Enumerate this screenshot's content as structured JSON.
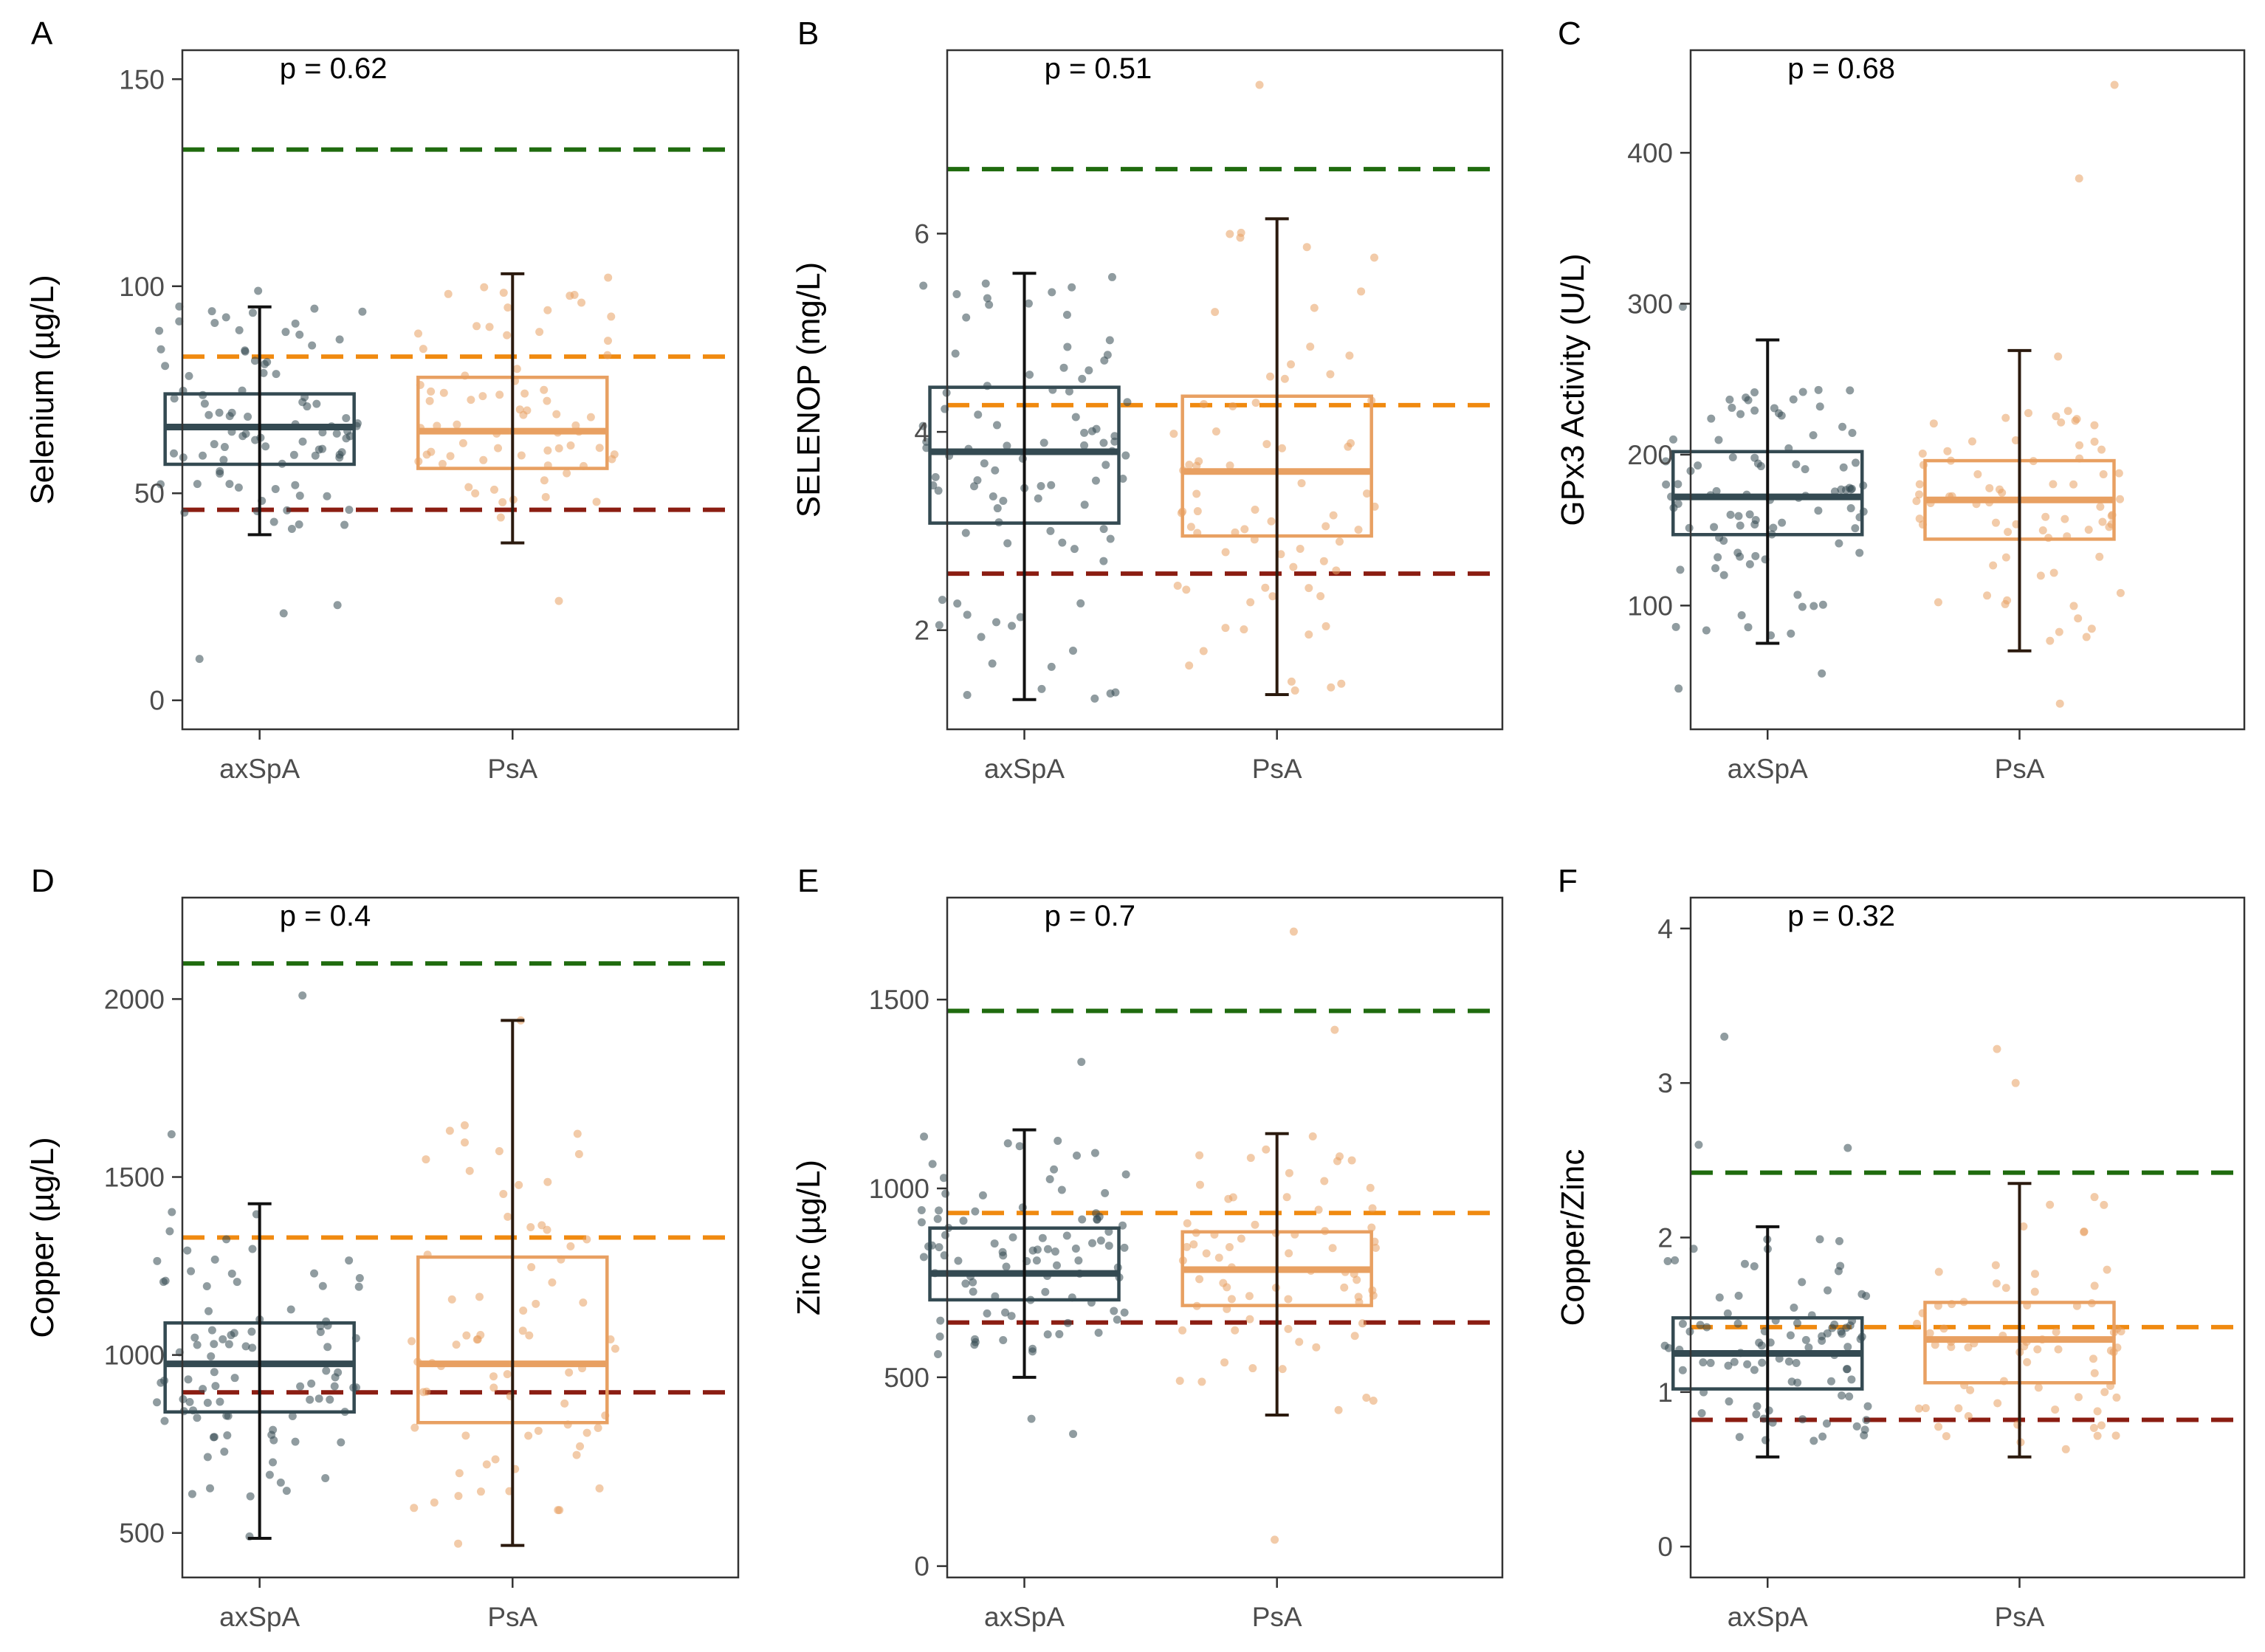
{
  "colors": {
    "axspa": "#344a52",
    "psa": "#e8a062",
    "psa_whisker": "#2b1a0e",
    "ref_high": "#1f6b0e",
    "ref_mid": "#f08a10",
    "ref_low": "#8b1d12",
    "frame": "#333333",
    "tick_text": "#4d4d4d"
  },
  "chart_data": [
    {
      "type": "box",
      "panel": "A",
      "title": "",
      "ylabel": "Selenium (µg/L)",
      "xlabel": "",
      "categories": [
        "axSpA",
        "PsA"
      ],
      "ylim": [
        -7,
        157
      ],
      "yticks": [
        0,
        50,
        100,
        150
      ],
      "pvalue": "p = 0.62",
      "reference_lines": {
        "high": 133,
        "mid": 83,
        "low": 46
      },
      "series": [
        {
          "name": "axSpA",
          "q1": 57,
          "median": 66,
          "q3": 74,
          "whisker_low": 40,
          "whisker_high": 95,
          "points_range": [
            41,
            99
          ],
          "n_points": 90,
          "outliers": [
            21,
            23,
            10
          ]
        },
        {
          "name": "PsA",
          "q1": 56,
          "median": 65,
          "q3": 78,
          "whisker_low": 38,
          "whisker_high": 103,
          "points_range": [
            40,
            103
          ],
          "n_points": 70,
          "outliers": [
            24
          ]
        }
      ]
    },
    {
      "type": "box",
      "panel": "B",
      "title": "",
      "ylabel": "SELENOP (mg/L)",
      "xlabel": "",
      "categories": [
        "axSpA",
        "PsA"
      ],
      "ylim": [
        1.0,
        7.85
      ],
      "yticks": [
        2,
        4,
        6
      ],
      "pvalue": "p = 0.51",
      "reference_lines": {
        "high": 6.65,
        "mid": 4.27,
        "low": 2.57
      },
      "series": [
        {
          "name": "axSpA",
          "q1": 3.08,
          "median": 3.8,
          "q3": 4.45,
          "whisker_low": 1.3,
          "whisker_high": 5.6,
          "points_range": [
            1.3,
            5.6
          ],
          "n_points": 90,
          "outliers": []
        },
        {
          "name": "PsA",
          "q1": 2.95,
          "median": 3.6,
          "q3": 4.36,
          "whisker_low": 1.35,
          "whisker_high": 6.15,
          "points_range": [
            1.35,
            6.15
          ],
          "n_points": 70,
          "outliers": [
            7.5
          ]
        }
      ]
    },
    {
      "type": "box",
      "panel": "C",
      "title": "",
      "ylabel": "GPx3 Activity (U/L)",
      "xlabel": "",
      "categories": [
        "axSpA",
        "PsA"
      ],
      "ylim": [
        18,
        468
      ],
      "yticks": [
        100,
        200,
        300,
        400
      ],
      "pvalue": "p = 0.68",
      "reference_lines": {},
      "series": [
        {
          "name": "axSpA",
          "q1": 147,
          "median": 172,
          "q3": 202,
          "whisker_low": 75,
          "whisker_high": 276,
          "points_range": [
            80,
            245
          ],
          "n_points": 90,
          "outliers": [
            298,
            45,
            55
          ]
        },
        {
          "name": "PsA",
          "q1": 144,
          "median": 170,
          "q3": 196,
          "whisker_low": 70,
          "whisker_high": 269,
          "points_range": [
            75,
            230
          ],
          "n_points": 70,
          "outliers": [
            445,
            383,
            265,
            35
          ]
        }
      ]
    },
    {
      "type": "box",
      "panel": "D",
      "title": "",
      "ylabel": "Copper (µg/L)",
      "xlabel": "",
      "categories": [
        "axSpA",
        "PsA"
      ],
      "ylim": [
        375,
        2285
      ],
      "yticks": [
        500,
        1000,
        1500,
        2000
      ],
      "pvalue": "p = 0.4",
      "reference_lines": {
        "high": 2100,
        "mid": 1330,
        "low": 895
      },
      "series": [
        {
          "name": "axSpA",
          "q1": 840,
          "median": 975,
          "q3": 1090,
          "whisker_low": 485,
          "whisker_high": 1425,
          "points_range": [
            600,
            1420
          ],
          "n_points": 90,
          "outliers": [
            2010,
            1620,
            490
          ]
        },
        {
          "name": "PsA",
          "q1": 810,
          "median": 975,
          "q3": 1275,
          "whisker_low": 465,
          "whisker_high": 1940,
          "points_range": [
            560,
            1650
          ],
          "n_points": 70,
          "outliers": [
            1940,
            470
          ]
        }
      ]
    },
    {
      "type": "box",
      "panel": "E",
      "title": "",
      "ylabel": "Zinc (µg/L)",
      "xlabel": "",
      "categories": [
        "axSpA",
        "PsA"
      ],
      "ylim": [
        -30,
        1770
      ],
      "yticks": [
        0,
        500,
        1000,
        1500
      ],
      "pvalue": "p = 0.7",
      "reference_lines": {
        "high": 1470,
        "mid": 935,
        "low": 645
      },
      "series": [
        {
          "name": "axSpA",
          "q1": 705,
          "median": 775,
          "q3": 895,
          "whisker_low": 500,
          "whisker_high": 1155,
          "points_range": [
            560,
            1155
          ],
          "n_points": 90,
          "outliers": [
            1335,
            350,
            390
          ]
        },
        {
          "name": "PsA",
          "q1": 690,
          "median": 785,
          "q3": 885,
          "whisker_low": 400,
          "whisker_high": 1145,
          "points_range": [
            390,
            1150
          ],
          "n_points": 70,
          "outliers": [
            1680,
            1420,
            70
          ]
        }
      ]
    },
    {
      "type": "box",
      "panel": "F",
      "title": "",
      "ylabel": "Copper/Zinc",
      "xlabel": "",
      "categories": [
        "axSpA",
        "PsA"
      ],
      "ylim": [
        -0.2,
        4.2
      ],
      "yticks": [
        0,
        1,
        2,
        3,
        4
      ],
      "pvalue": "p = 0.32",
      "reference_lines": {
        "high": 2.42,
        "mid": 1.42,
        "low": 0.82
      },
      "series": [
        {
          "name": "axSpA",
          "q1": 1.02,
          "median": 1.25,
          "q3": 1.48,
          "whisker_low": 0.58,
          "whisker_high": 2.07,
          "points_range": [
            0.65,
            2.0
          ],
          "n_points": 90,
          "outliers": [
            3.3,
            2.6,
            2.58
          ]
        },
        {
          "name": "PsA",
          "q1": 1.06,
          "median": 1.34,
          "q3": 1.58,
          "whisker_low": 0.58,
          "whisker_high": 2.35,
          "points_range": [
            0.6,
            2.3
          ],
          "n_points": 70,
          "outliers": [
            3.22,
            3.0
          ]
        }
      ]
    }
  ]
}
